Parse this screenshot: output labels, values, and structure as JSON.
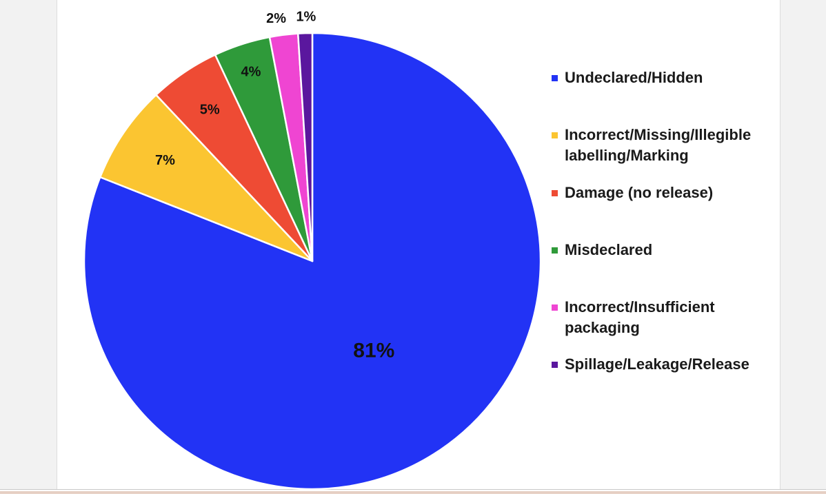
{
  "chart_data": {
    "type": "pie",
    "title": "",
    "slices": [
      {
        "label": "Undeclared/Hidden",
        "value": 81,
        "display": "81%",
        "color": "#2233f5"
      },
      {
        "label": "Incorrect/Missing/Illegible labelling/Marking",
        "value": 7,
        "display": "7%",
        "color": "#fbc531"
      },
      {
        "label": "Damage (no release)",
        "value": 5,
        "display": "5%",
        "color": "#ee4b34"
      },
      {
        "label": "Misdeclared",
        "value": 4,
        "display": "4%",
        "color": "#2f9a3a"
      },
      {
        "label": "Incorrect/Insufficient packaging",
        "value": 2,
        "display": "2%",
        "color": "#ef45d2"
      },
      {
        "label": "Spillage/Leakage/Release",
        "value": 1,
        "display": "1%",
        "color": "#5a179e"
      }
    ],
    "start_angle": "12 o'clock",
    "direction": "clockwise",
    "legend_position": "right"
  }
}
